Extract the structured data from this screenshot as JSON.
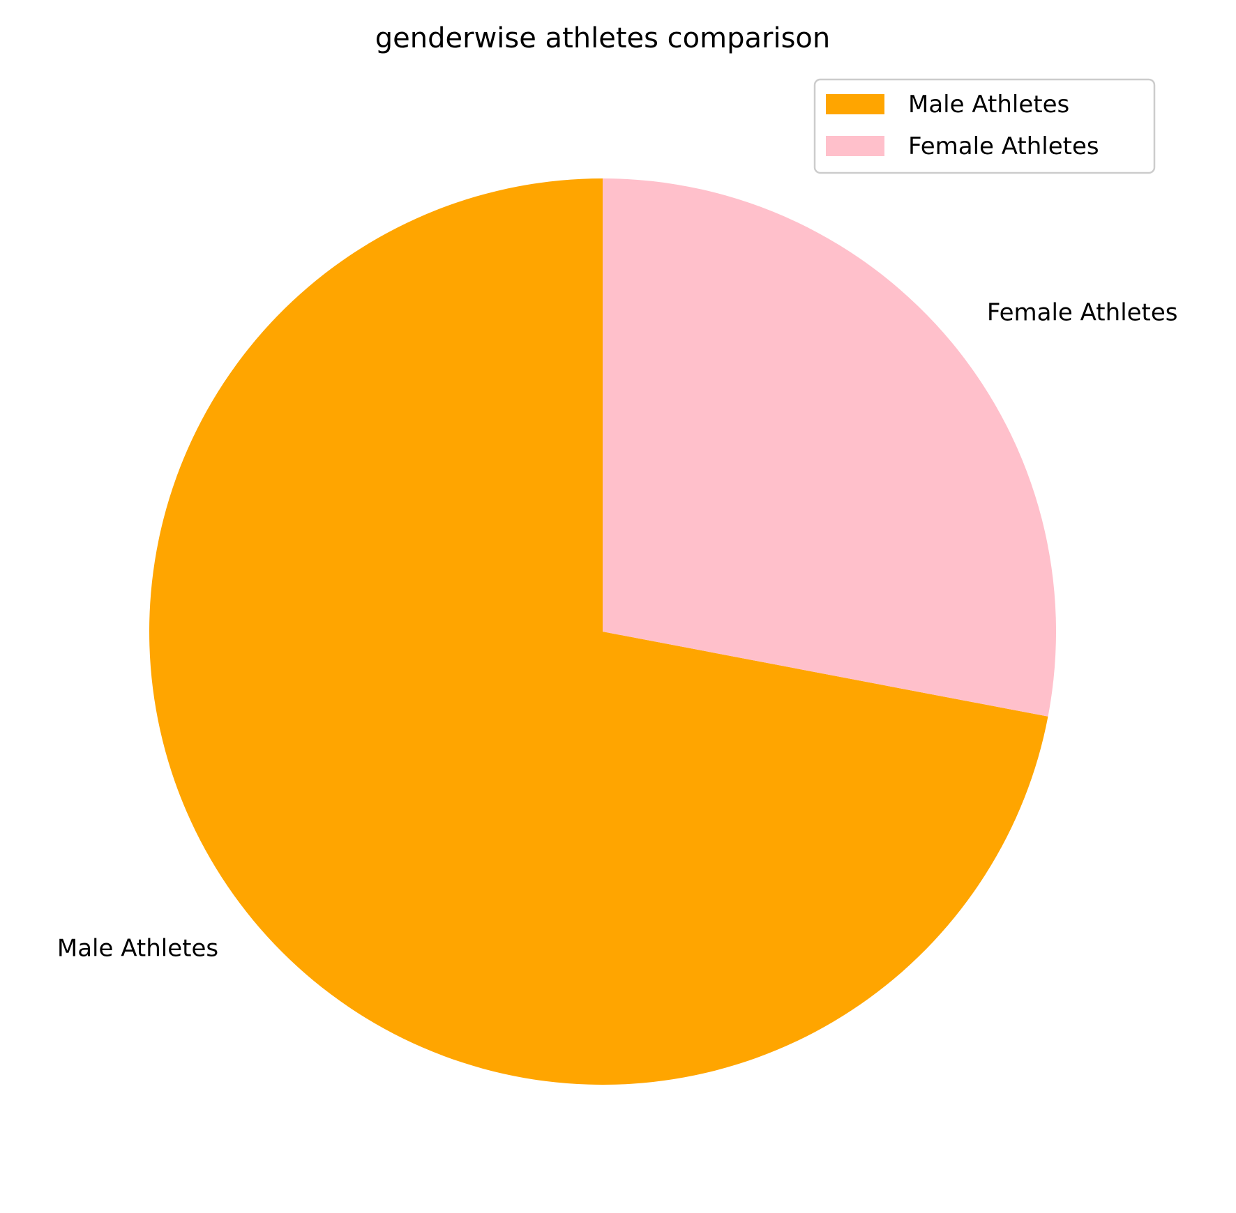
{
  "chart_data": {
    "type": "pie",
    "title": "genderwise athletes comparison",
    "categories": [
      "Male Athletes",
      "Female Athletes"
    ],
    "values": [
      72,
      28
    ],
    "colors": [
      "#FFA500",
      "#FFC0CB"
    ],
    "start_angle_deg": 90,
    "direction": "counterclockwise",
    "legend": {
      "placement": "upper-right",
      "entries": [
        "Male Athletes",
        "Female Athletes"
      ]
    }
  }
}
